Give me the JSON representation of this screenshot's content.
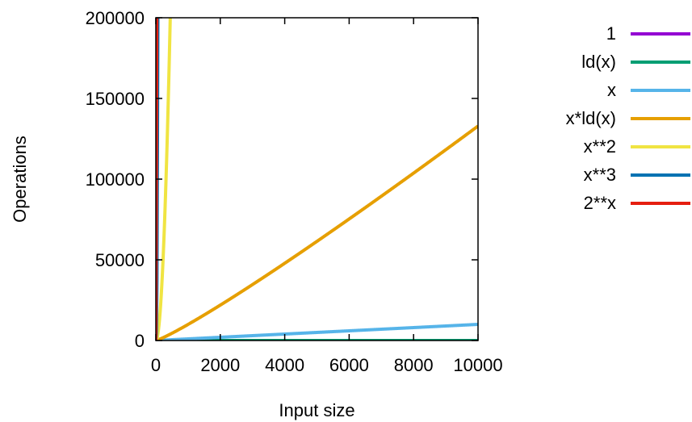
{
  "chart_data": {
    "type": "line",
    "xlabel": "Input size",
    "ylabel": "Operations",
    "xlim": [
      0,
      10000
    ],
    "ylim": [
      0,
      200000
    ],
    "x_ticks": [
      0,
      2000,
      4000,
      6000,
      8000,
      10000
    ],
    "y_ticks": [
      0,
      50000,
      100000,
      150000,
      200000
    ],
    "grid": false,
    "legend_position": "right",
    "series": [
      {
        "name": "1",
        "func": "const",
        "color": "#9400d3"
      },
      {
        "name": "ld(x)",
        "func": "log2",
        "color": "#009e73"
      },
      {
        "name": "x",
        "func": "x",
        "color": "#56b4e9"
      },
      {
        "name": "x*ld(x)",
        "func": "xlog2",
        "color": "#e69f00"
      },
      {
        "name": "x**2",
        "func": "x2",
        "color": "#f0e442"
      },
      {
        "name": "x**3",
        "func": "x3",
        "color": "#0072b2"
      },
      {
        "name": "2**x",
        "func": "exp2",
        "color": "#e51e10"
      }
    ]
  }
}
